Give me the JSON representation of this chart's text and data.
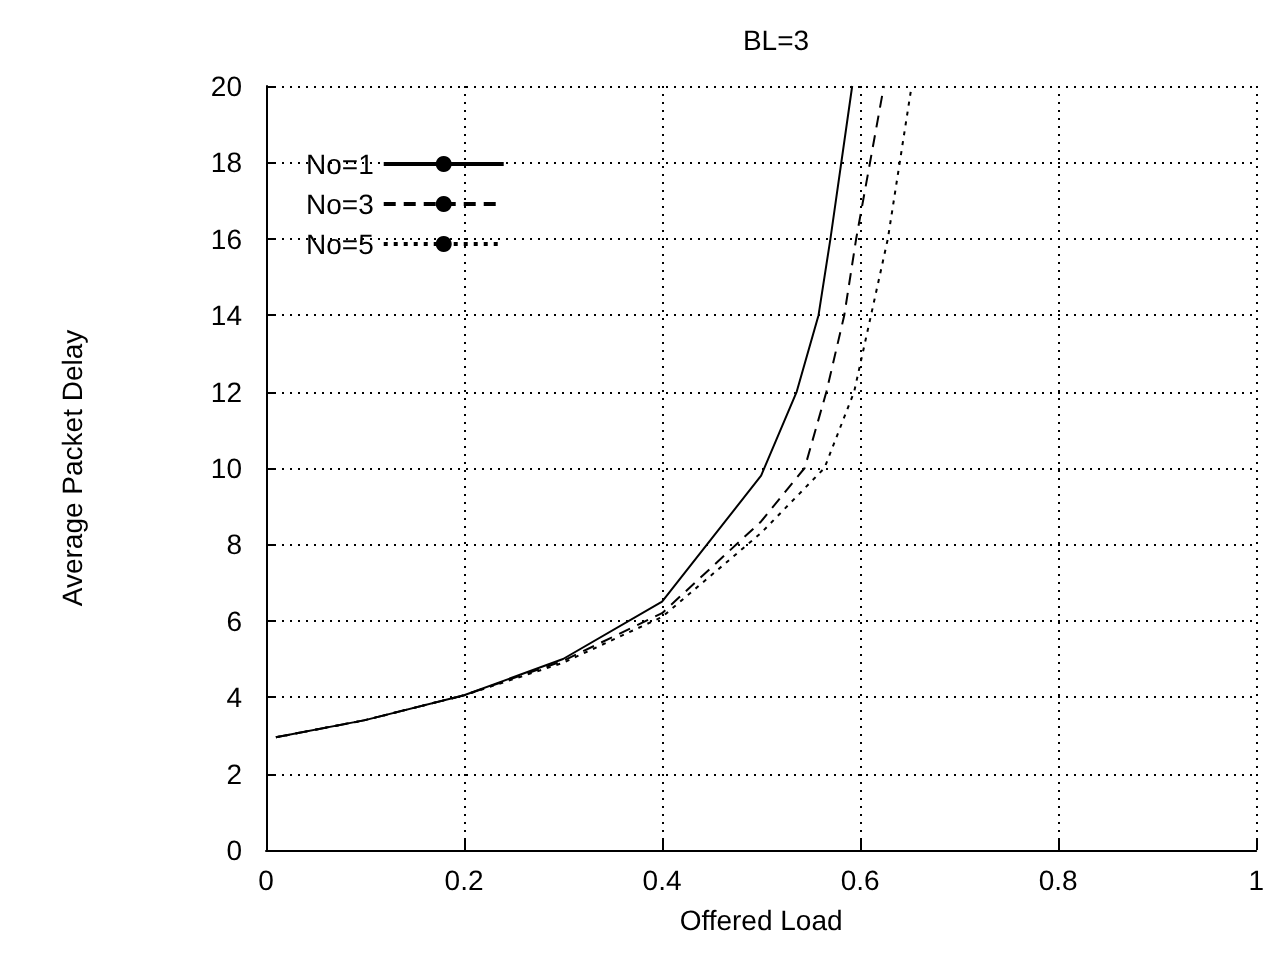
{
  "chart_data": {
    "type": "line",
    "title": "BL=3",
    "xlabel": "Offered Load",
    "ylabel": "Average Packet Delay",
    "xlim": [
      0,
      1
    ],
    "xticks": [
      0,
      0.2,
      0.4,
      0.6,
      0.8,
      1
    ],
    "ylim": [
      0,
      20
    ],
    "yticks": [
      0,
      2,
      4,
      6,
      8,
      10,
      12,
      14,
      16,
      18,
      20
    ],
    "grid": true,
    "legend": "top left",
    "marker": "none",
    "series": [
      {
        "name": "No=1",
        "color": "#000000",
        "line_style": "solid",
        "x": [
          0.01,
          0.1,
          0.2,
          0.3,
          0.4,
          0.5,
          0.536,
          0.558,
          0.57,
          0.592
        ],
        "values": [
          2.95,
          3.4,
          4.05,
          5.0,
          6.5,
          9.8,
          12,
          14,
          16,
          20
        ]
      },
      {
        "name": "No=3",
        "color": "#000000",
        "line_style": "dashed",
        "x": [
          0.01,
          0.1,
          0.2,
          0.3,
          0.4,
          0.5,
          0.544,
          0.566,
          0.584,
          0.596,
          0.624
        ],
        "values": [
          2.95,
          3.4,
          4.05,
          4.95,
          6.2,
          8.6,
          10,
          12,
          14,
          16,
          20
        ]
      },
      {
        "name": "No=5",
        "color": "#000000",
        "line_style": "dotted",
        "x": [
          0.01,
          0.1,
          0.2,
          0.3,
          0.4,
          0.5,
          0.564,
          0.594,
          0.628,
          0.652
        ],
        "values": [
          2.95,
          3.4,
          4.05,
          4.9,
          6.1,
          8.3,
          10,
          12,
          16,
          20
        ]
      }
    ]
  }
}
